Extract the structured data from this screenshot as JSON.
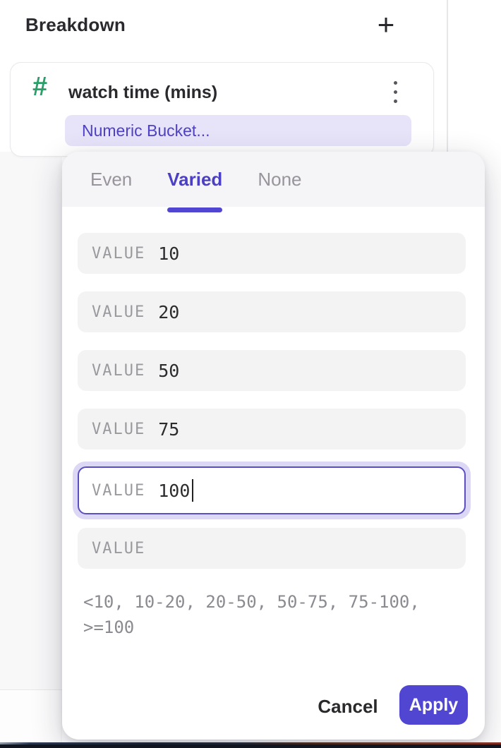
{
  "colors": {
    "accent_purple": "#5046d2",
    "pill_background": "#e7e4fa",
    "pill_text": "#4e41c6",
    "focus_border": "#5a4fc2",
    "focus_ring": "#dcd7f4",
    "hash_green": "#2b9f69",
    "row_background": "#f3f3f4",
    "tabbar_background": "#f5f4f6",
    "muted_text": "#97959b"
  },
  "header": {
    "title": "Breakdown",
    "add_icon": "+"
  },
  "breakdown_card": {
    "type_icon": "#",
    "property_name": "watch time (mins)",
    "bucket_label": "Numeric Bucket..."
  },
  "popup": {
    "tabs": [
      {
        "label": "Even",
        "active": false
      },
      {
        "label": "Varied",
        "active": true
      },
      {
        "label": "None",
        "active": false
      }
    ],
    "rows": [
      {
        "label": "VALUE",
        "value": "10"
      },
      {
        "label": "VALUE",
        "value": "20"
      },
      {
        "label": "VALUE",
        "value": "50"
      },
      {
        "label": "VALUE",
        "value": "75"
      },
      {
        "label": "VALUE",
        "value": "100",
        "focused": true
      },
      {
        "label": "VALUE",
        "value": ""
      }
    ],
    "summary_line1": "<10, 10-20, 20-50, 50-75, 75-100,",
    "summary_line2": ">=100",
    "cancel_label": "Cancel",
    "apply_label": "Apply"
  }
}
